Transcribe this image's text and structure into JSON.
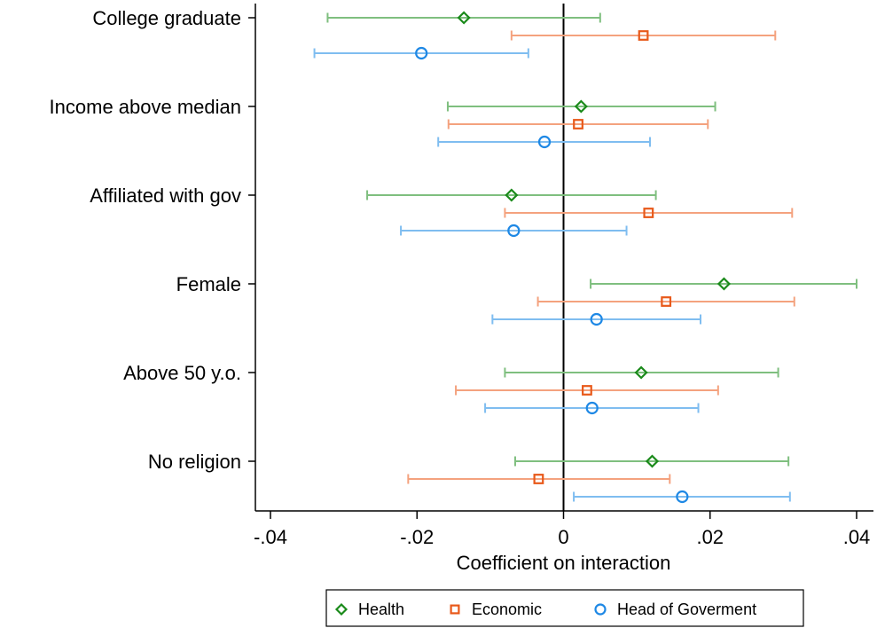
{
  "chart_data": {
    "type": "scatter",
    "xlabel": "Coefficient on interaction",
    "ylabel": "",
    "xlim": [
      -0.04,
      0.04
    ],
    "xticks": [
      -0.04,
      -0.02,
      0,
      0.02,
      0.04
    ],
    "xtick_labels": [
      "-.04",
      "-.02",
      "0",
      ".02",
      ".04"
    ],
    "categories": [
      "College graduate",
      "Income above median",
      "Affiliated with gov",
      "Female",
      "Above 50 y.o.",
      "No religion"
    ],
    "reference_line_x": 0,
    "grid": false,
    "legend_position": "bottom",
    "series": [
      {
        "name": "Health",
        "marker": "diamond",
        "marker_color": "#1a8a1a",
        "ci_color": "#7fbf7f",
        "points": [
          {
            "estimate": -0.0136,
            "ci": [
              -0.0322,
              0.005
            ]
          },
          {
            "estimate": 0.0024,
            "ci": [
              -0.0158,
              0.0207
            ]
          },
          {
            "estimate": -0.0071,
            "ci": [
              -0.0268,
              0.0126
            ]
          },
          {
            "estimate": 0.0219,
            "ci": [
              0.0037,
              0.04
            ]
          },
          {
            "estimate": 0.0106,
            "ci": [
              -0.008,
              0.0293
            ]
          },
          {
            "estimate": 0.0121,
            "ci": [
              -0.0066,
              0.0307
            ]
          }
        ]
      },
      {
        "name": "Economic",
        "marker": "square",
        "marker_color": "#e8591a",
        "ci_color": "#f4a27e",
        "points": [
          {
            "estimate": 0.0109,
            "ci": [
              -0.0071,
              0.0289
            ]
          },
          {
            "estimate": 0.002,
            "ci": [
              -0.0157,
              0.0197
            ]
          },
          {
            "estimate": 0.0116,
            "ci": [
              -0.008,
              0.0312
            ]
          },
          {
            "estimate": 0.014,
            "ci": [
              -0.0035,
              0.0315
            ]
          },
          {
            "estimate": 0.0032,
            "ci": [
              -0.0147,
              0.0211
            ]
          },
          {
            "estimate": -0.0034,
            "ci": [
              -0.0212,
              0.0145
            ]
          }
        ]
      },
      {
        "name": "Head of Goverment",
        "marker": "circle",
        "marker_color": "#1e88e5",
        "ci_color": "#7fbdf0",
        "points": [
          {
            "estimate": -0.0194,
            "ci": [
              -0.034,
              -0.0048
            ]
          },
          {
            "estimate": -0.0026,
            "ci": [
              -0.0171,
              0.0118
            ]
          },
          {
            "estimate": -0.0068,
            "ci": [
              -0.0222,
              0.0086
            ]
          },
          {
            "estimate": 0.0045,
            "ci": [
              -0.0097,
              0.0187
            ]
          },
          {
            "estimate": 0.0039,
            "ci": [
              -0.0107,
              0.0184
            ]
          },
          {
            "estimate": 0.0162,
            "ci": [
              0.0014,
              0.0309
            ]
          }
        ]
      }
    ]
  }
}
